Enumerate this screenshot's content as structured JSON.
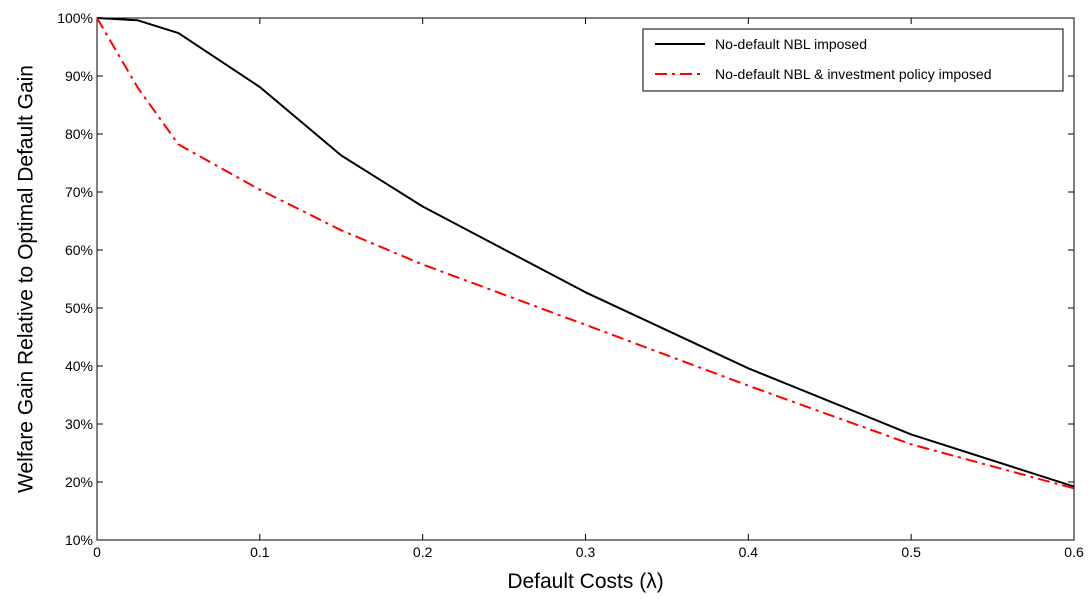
{
  "chart_data": {
    "type": "line",
    "title": "",
    "xlabel": "Default Costs (λ)",
    "ylabel": "Welfare Gain Relative to Optimal Default Gain",
    "xlim": [
      0,
      0.6
    ],
    "ylim": [
      10,
      100
    ],
    "x_ticks": [
      0,
      0.1,
      0.2,
      0.3,
      0.4,
      0.5,
      0.6
    ],
    "x_tick_labels": [
      "0",
      "0.1",
      "0.2",
      "0.3",
      "0.4",
      "0.5",
      "0.6"
    ],
    "y_ticks": [
      10,
      20,
      30,
      40,
      50,
      60,
      70,
      80,
      90,
      100
    ],
    "y_tick_labels": [
      "10%",
      "20%",
      "30%",
      "40%",
      "50%",
      "60%",
      "70%",
      "80%",
      "90%",
      "100%"
    ],
    "grid": false,
    "legend_position": "top-right",
    "series": [
      {
        "name": "No-default NBL imposed",
        "color": "#000000",
        "line_style": "solid",
        "x": [
          0,
          0.025,
          0.05,
          0.1,
          0.15,
          0.2,
          0.3,
          0.4,
          0.5,
          0.6
        ],
        "y": [
          100,
          99.6,
          97.4,
          88.1,
          76.3,
          67.5,
          52.7,
          39.6,
          28.2,
          19.2
        ]
      },
      {
        "name": "No-default NBL & investment policy imposed",
        "color": "#ff0000",
        "line_style": "dash-dot",
        "x": [
          0,
          0.025,
          0.05,
          0.1,
          0.15,
          0.2,
          0.3,
          0.4,
          0.5,
          0.6
        ],
        "y": [
          100,
          88.0,
          78.2,
          70.4,
          63.4,
          57.5,
          47.1,
          36.6,
          26.5,
          18.9
        ]
      }
    ]
  }
}
